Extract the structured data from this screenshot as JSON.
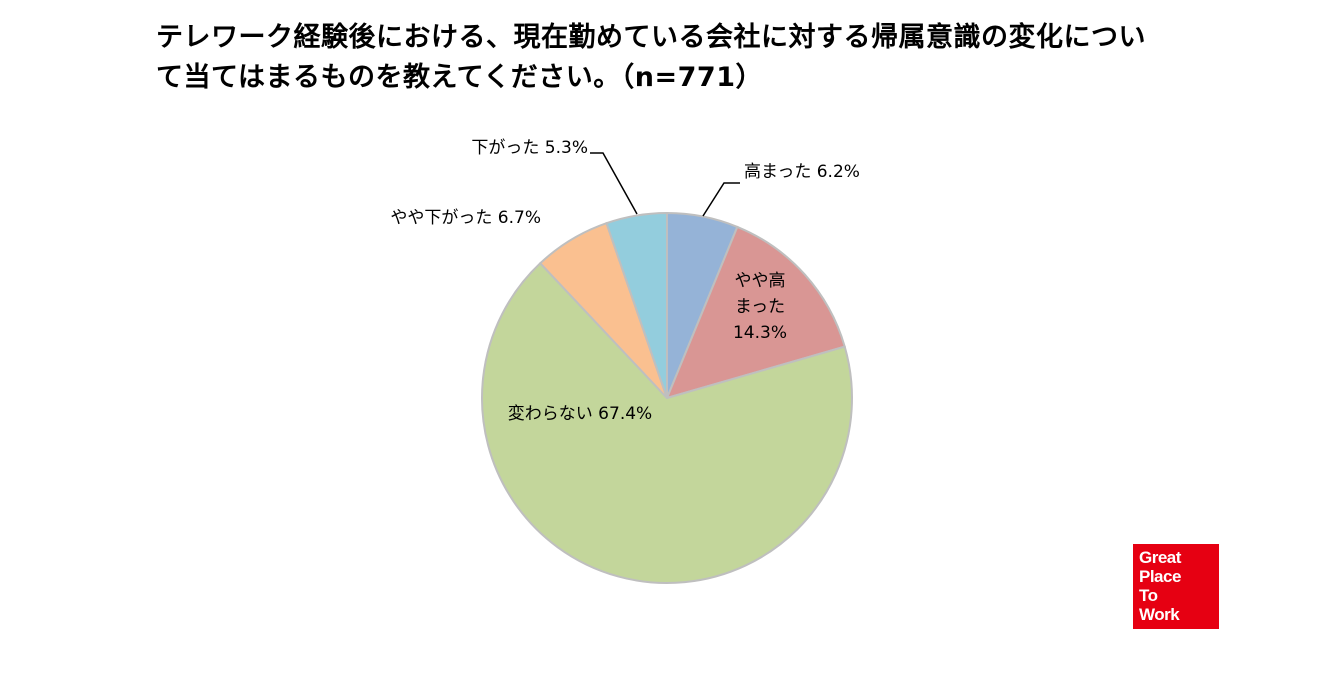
{
  "title": {
    "line1": "テレワーク経験後における、現在勤めている会社に対する帰属意識の変化につい",
    "line2": "て当てはまるものを教えてください。（n=771）"
  },
  "colors": {
    "高まった": "#95b3d7",
    "やや高まった": "#d99694",
    "変わらない": "#c3d69b",
    "やや下がった": "#fac090",
    "下がった": "#93cddd",
    "border": "#bfbfbf",
    "leader": "#000000",
    "logo_bg": "#e60012"
  },
  "chart_data": {
    "type": "pie",
    "title": "テレワーク経験後における、現在勤めている会社に対する帰属意識の変化について当てはまるものを教えてください。（n=771）",
    "unit": "%",
    "start": "12 o'clock",
    "direction": "clockwise",
    "categories": [
      "高まった",
      "やや高まった",
      "変わらない",
      "やや下がった",
      "下がった"
    ],
    "values": [
      6.2,
      14.3,
      67.4,
      6.7,
      5.3
    ],
    "labels": [
      [
        "高まった 6.2%"
      ],
      [
        "やや高",
        "まった",
        "14.3%"
      ],
      [
        "変わらない 67.4%"
      ],
      [
        "やや下がった 6.7%"
      ],
      [
        "下がった 5.3%"
      ]
    ]
  },
  "logo": {
    "lines": [
      "Great",
      "Place",
      "To",
      "Work"
    ],
    "mark": "®"
  }
}
